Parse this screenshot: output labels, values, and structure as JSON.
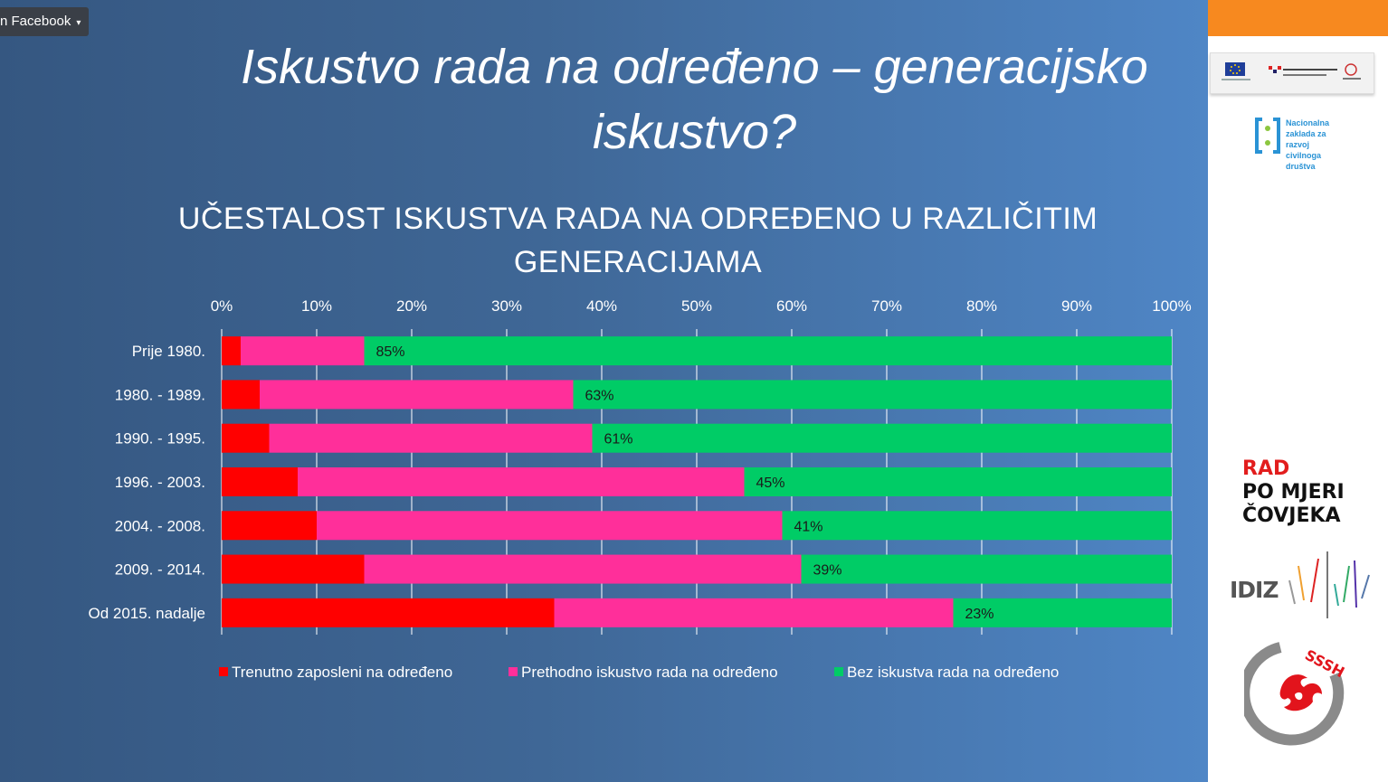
{
  "share_button": {
    "label": "n Facebook",
    "caret": "▾"
  },
  "slide_title": "Iskustvo rada na određeno – generacijsko iskustvo?",
  "slide_title_lines": [
    "Iskustvo rada na određeno – generacijsko",
    "iskustvo?"
  ],
  "chart_title_lines": [
    "UČESTALOST ISKUSTVA RADA NA ODREĐENO U RAZLIČITIM",
    "GENERACIJAMA"
  ],
  "logos": {
    "nacionalna_zaklada": [
      "Nacionalna",
      "zaklada za",
      "razvoj",
      "civilnoga",
      "društva"
    ],
    "rad_po_mjeri": [
      "RAD",
      "PO MJERI",
      "ČOVJEKA"
    ],
    "idiz": "IDIZ",
    "sssh": "SSSH"
  },
  "colors": {
    "orange_bar": "#f7891f",
    "series_current": "#ff0000",
    "series_previous": "#ff2f9a",
    "series_none": "#00cc66"
  },
  "chart_data": {
    "type": "bar",
    "orientation": "horizontal",
    "stacked": "percent",
    "title": "UČESTALOST ISKUSTVA RADA NA ODREĐENO U RAZLIČITIM GENERACIJAMA",
    "categories": [
      "Prije 1980.",
      "1980. - 1989.",
      "1990. - 1995.",
      "1996. - 2003.",
      "2004. - 2008.",
      "2009. - 2014.",
      "Od 2015. nadalje"
    ],
    "x_ticks": [
      "0%",
      "10%",
      "20%",
      "30%",
      "40%",
      "50%",
      "60%",
      "70%",
      "80%",
      "90%",
      "100%"
    ],
    "xlim": [
      0,
      100
    ],
    "grid": true,
    "legend_position": "bottom",
    "series": [
      {
        "name": "Trenutno zaposleni na određeno",
        "color": "#ff0000",
        "values": [
          2,
          4,
          5,
          8,
          10,
          15,
          35
        ]
      },
      {
        "name": "Prethodno iskustvo rada na određeno",
        "color": "#ff2f9a",
        "values": [
          13,
          33,
          34,
          47,
          49,
          46,
          42
        ]
      },
      {
        "name": "Bez iskustva rada na određeno",
        "color": "#00cc66",
        "values": [
          85,
          63,
          61,
          45,
          41,
          39,
          23
        ]
      }
    ],
    "data_labels": [
      "85%",
      "63%",
      "61%",
      "45%",
      "41%",
      "39%",
      "23%"
    ]
  }
}
